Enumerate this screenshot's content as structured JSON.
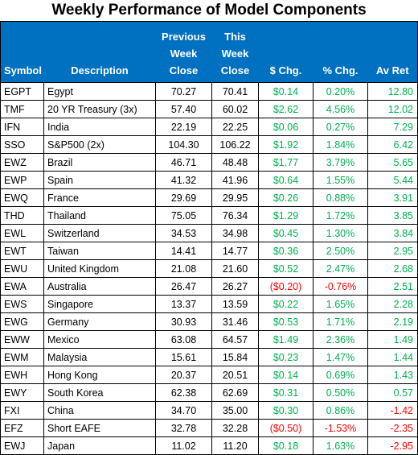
{
  "title": "Weekly Performance of Model Components",
  "colors": {
    "header_bg": "#0070c0",
    "positive": "#00b050",
    "negative": "#ff0000"
  },
  "headers": {
    "symbol": "Symbol",
    "description": "Description",
    "prev_line1": "Previous",
    "prev_line2": "Week",
    "prev_line3": "Close",
    "this_line1": "This",
    "this_line2": "Week",
    "this_line3": "Close",
    "dollar_chg": "$ Chg.",
    "pct_chg": "% Chg.",
    "av_ret": "Av Ret"
  },
  "rows": [
    {
      "symbol": "EGPT",
      "description": "Egypt",
      "prev": "70.27",
      "this": "70.41",
      "dollar": "$0.14",
      "pct": "0.20%",
      "avret": "12.80"
    },
    {
      "symbol": "TMF",
      "description": "20 YR Treasury (3x)",
      "prev": "57.40",
      "this": "60.02",
      "dollar": "$2.62",
      "pct": "4.56%",
      "avret": "12.02"
    },
    {
      "symbol": "IFN",
      "description": "India",
      "prev": "22.19",
      "this": "22.25",
      "dollar": "$0.06",
      "pct": "0.27%",
      "avret": "7.29"
    },
    {
      "symbol": "SSO",
      "description": "S&P500 (2x)",
      "prev": "104.30",
      "this": "106.22",
      "dollar": "$1.92",
      "pct": "1.84%",
      "avret": "6.42"
    },
    {
      "symbol": "EWZ",
      "description": "Brazil",
      "prev": "46.71",
      "this": "48.48",
      "dollar": "$1.77",
      "pct": "3.79%",
      "avret": "5.65"
    },
    {
      "symbol": "EWP",
      "description": "Spain",
      "prev": "41.32",
      "this": "41.96",
      "dollar": "$0.64",
      "pct": "1.55%",
      "avret": "5.44"
    },
    {
      "symbol": "EWQ",
      "description": "France",
      "prev": "29.69",
      "this": "29.95",
      "dollar": "$0.26",
      "pct": "0.88%",
      "avret": "3.91"
    },
    {
      "symbol": "THD",
      "description": "Thailand",
      "prev": "75.05",
      "this": "76.34",
      "dollar": "$1.29",
      "pct": "1.72%",
      "avret": "3.85"
    },
    {
      "symbol": "EWL",
      "description": "Switzerland",
      "prev": "34.53",
      "this": "34.98",
      "dollar": "$0.45",
      "pct": "1.30%",
      "avret": "3.84"
    },
    {
      "symbol": "EWT",
      "description": "Taiwan",
      "prev": "14.41",
      "this": "14.77",
      "dollar": "$0.36",
      "pct": "2.50%",
      "avret": "2.95"
    },
    {
      "symbol": "EWU",
      "description": "United Kingdom",
      "prev": "21.08",
      "this": "21.60",
      "dollar": "$0.52",
      "pct": "2.47%",
      "avret": "2.68"
    },
    {
      "symbol": "EWA",
      "description": "Australia",
      "prev": "26.47",
      "this": "26.27",
      "dollar": "($0.20)",
      "pct": "-0.76%",
      "avret": "2.51"
    },
    {
      "symbol": "EWS",
      "description": "Singapore",
      "prev": "13.37",
      "this": "13.59",
      "dollar": "$0.22",
      "pct": "1.65%",
      "avret": "2.28"
    },
    {
      "symbol": "EWG",
      "description": "Germany",
      "prev": "30.93",
      "this": "31.46",
      "dollar": "$0.53",
      "pct": "1.71%",
      "avret": "2.19"
    },
    {
      "symbol": "EWW",
      "description": "Mexico",
      "prev": "63.08",
      "this": "64.57",
      "dollar": "$1.49",
      "pct": "2.36%",
      "avret": "1.49"
    },
    {
      "symbol": "EWM",
      "description": "Malaysia",
      "prev": "15.61",
      "this": "15.84",
      "dollar": "$0.23",
      "pct": "1.47%",
      "avret": "1.44"
    },
    {
      "symbol": "EWH",
      "description": "Hong Kong",
      "prev": "20.37",
      "this": "20.51",
      "dollar": "$0.14",
      "pct": "0.69%",
      "avret": "1.43"
    },
    {
      "symbol": "EWY",
      "description": "South Korea",
      "prev": "62.38",
      "this": "62.69",
      "dollar": "$0.31",
      "pct": "0.50%",
      "avret": "0.57"
    },
    {
      "symbol": "FXI",
      "description": "China",
      "prev": "34.70",
      "this": "35.00",
      "dollar": "$0.30",
      "pct": "0.86%",
      "avret": "-1.42"
    },
    {
      "symbol": "EFZ",
      "description": "Short EAFE",
      "prev": "32.78",
      "this": "32.28",
      "dollar": "($0.50)",
      "pct": "-1.53%",
      "avret": "-2.35"
    },
    {
      "symbol": "EWJ",
      "description": "Japan",
      "prev": "11.02",
      "this": "11.20",
      "dollar": "$0.18",
      "pct": "1.63%",
      "avret": "-2.95"
    }
  ]
}
